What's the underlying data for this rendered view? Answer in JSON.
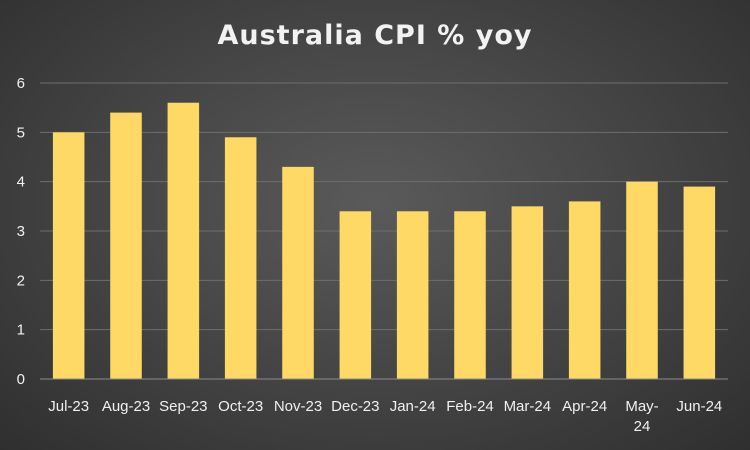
{
  "chart_data": {
    "type": "bar",
    "title": "Australia CPI % yoy",
    "categories": [
      "Jul-23",
      "Aug-23",
      "Sep-23",
      "Oct-23",
      "Nov-23",
      "Dec-23",
      "Jan-24",
      "Feb-24",
      "Mar-24",
      "Apr-24",
      "May-24",
      "Jun-24"
    ],
    "category_label_lines": [
      [
        "Jul-23"
      ],
      [
        "Aug-23"
      ],
      [
        "Sep-23"
      ],
      [
        "Oct-23"
      ],
      [
        "Nov-23"
      ],
      [
        "Dec-23"
      ],
      [
        "Jan-24"
      ],
      [
        "Feb-24"
      ],
      [
        "Mar-24"
      ],
      [
        "Apr-24"
      ],
      [
        "May-",
        "24"
      ],
      [
        "Jun-24"
      ]
    ],
    "values": [
      5.0,
      5.4,
      5.6,
      4.9,
      4.3,
      3.4,
      3.4,
      3.4,
      3.5,
      3.6,
      4.0,
      3.9
    ],
    "xlabel": "",
    "ylabel": "",
    "ylim": [
      0,
      6
    ],
    "yticks": [
      0,
      1,
      2,
      3,
      4,
      5,
      6
    ],
    "grid": true,
    "legend": "none",
    "bar_color": "#FFD966",
    "background_color": "#474747"
  }
}
